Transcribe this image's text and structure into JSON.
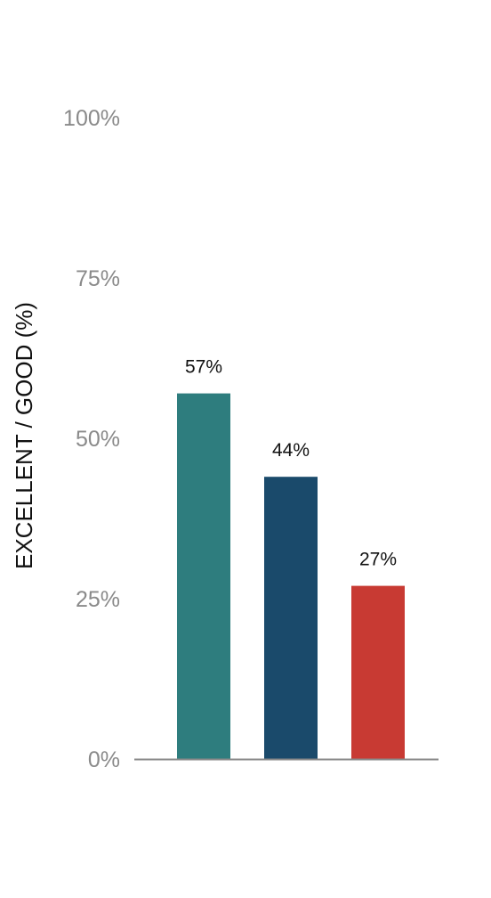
{
  "chart_data": {
    "type": "bar",
    "categories": [
      "",
      "",
      ""
    ],
    "values": [
      57,
      44,
      27
    ],
    "data_labels": [
      "57%",
      "44%",
      "27%"
    ],
    "bar_colors": [
      "#2e7d7e",
      "#1a4a6b",
      "#c83a33"
    ],
    "title": "",
    "xlabel": "",
    "ylabel": "EXCELLENT / GOOD (%)",
    "ylim": [
      0,
      100
    ],
    "yticks": [
      0,
      25,
      50,
      75,
      100
    ],
    "ytick_labels": [
      "0%",
      "25%",
      "50%",
      "75%",
      "100%"
    ],
    "grid": false,
    "legend": "none",
    "axis_color": "#8a8a8a",
    "tick_label_color": "#8a8a8a"
  }
}
